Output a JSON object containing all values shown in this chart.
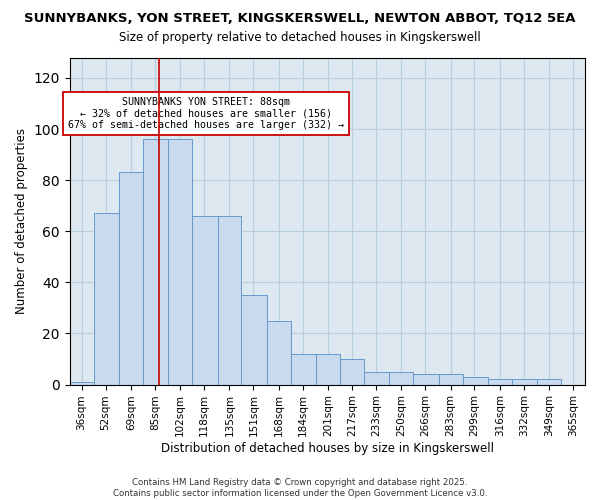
{
  "title": "SUNNYBANKS, YON STREET, KINGSKERSWELL, NEWTON ABBOT, TQ12 5EA",
  "subtitle": "Size of property relative to detached houses in Kingskerswell",
  "xlabel": "Distribution of detached houses by size in Kingskerswell",
  "ylabel": "Number of detached properties",
  "bar_color": "#c9d9ee",
  "bar_edge_color": "#6699cc",
  "categories": [
    "36sqm",
    "52sqm",
    "69sqm",
    "85sqm",
    "102sqm",
    "118sqm",
    "135sqm",
    "151sqm",
    "168sqm",
    "184sqm",
    "201sqm",
    "217sqm",
    "233sqm",
    "250sqm",
    "266sqm",
    "283sqm",
    "299sqm",
    "316sqm",
    "332sqm",
    "349sqm",
    "365sqm"
  ],
  "values": [
    1,
    67,
    83,
    96,
    96,
    66,
    66,
    35,
    25,
    12,
    12,
    10,
    5,
    5,
    4,
    4,
    3,
    2,
    2,
    2,
    0
  ],
  "annotation_box_text": "SUNNYBANKS YON STREET: 88sqm\n← 32% of detached houses are smaller (156)\n67% of semi-detached houses are larger (332) →",
  "annotation_box_color": "#ffffff",
  "annotation_box_edge_color": "#cc0000",
  "red_line_x": 88,
  "ylim": [
    0,
    128
  ],
  "grid_color": "#b8cfe0",
  "background_color": "#dde8f0",
  "footer": "Contains HM Land Registry data © Crown copyright and database right 2025.\nContains public sector information licensed under the Open Government Licence v3.0."
}
